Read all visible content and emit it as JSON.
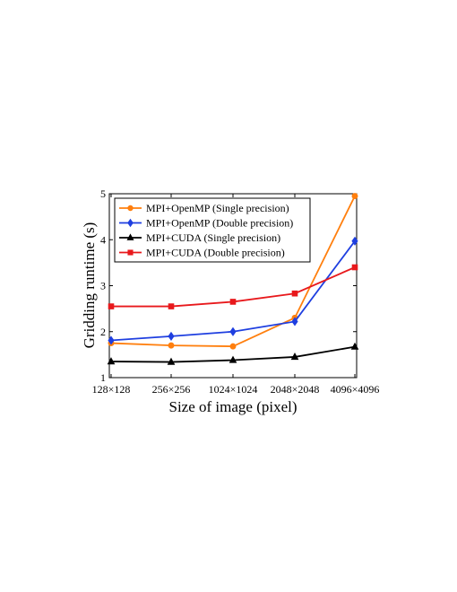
{
  "chart_data": {
    "type": "line",
    "title": "",
    "xlabel": "Size of image (pixel)",
    "ylabel": "Gridding runtime (s)",
    "categories": [
      "128×128",
      "256×256",
      "1024×1024",
      "2048×2048",
      "4096×4096"
    ],
    "ylim": [
      1,
      5
    ],
    "yticks": [
      1,
      2,
      3,
      4,
      5
    ],
    "grid": false,
    "legend_position": "top-left",
    "series": [
      {
        "name": "MPI+OpenMP (Single precision)",
        "color": "#ff7f0e",
        "marker": "circle",
        "values": [
          1.75,
          1.7,
          1.68,
          2.3,
          4.95
        ]
      },
      {
        "name": "MPI+OpenMP (Double precision)",
        "color": "#1f3fe0",
        "marker": "diamond",
        "values": [
          1.81,
          1.9,
          2.0,
          2.22,
          3.97
        ]
      },
      {
        "name": "MPI+CUDA (Single precision)",
        "color": "#000000",
        "marker": "triangle",
        "values": [
          1.35,
          1.34,
          1.38,
          1.45,
          1.67
        ]
      },
      {
        "name": "MPI+CUDA (Double precision)",
        "color": "#e8191c",
        "marker": "square",
        "values": [
          2.55,
          2.55,
          2.65,
          2.83,
          3.4
        ]
      }
    ]
  }
}
